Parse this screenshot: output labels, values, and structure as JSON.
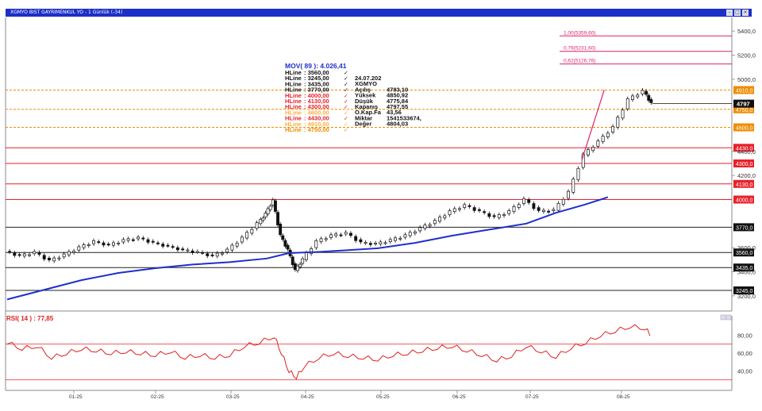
{
  "window": {
    "title": "XGMYO BIST GAYRIMENKUL YO - 1 Günlük (-34)",
    "controls": [
      "min-icon",
      "max-icon",
      "close-icon"
    ]
  },
  "colors": {
    "ma": "#1f2fcc",
    "rsi": "#e02020",
    "hline_red": "#e8202a",
    "hline_black": "#222222",
    "hline_orange": "#f08c00",
    "fib": "#e0206a",
    "tag_red": "#e8202a",
    "tag_orange": "#f08c00",
    "tag_black": "#111111"
  },
  "price_axis": [
    "5400,0",
    "5200,0",
    "5000,0",
    "4400,0",
    "4200,0",
    "3600,0",
    "3400,0",
    "3200,0"
  ],
  "x_axis": [
    "01-25",
    "02-25",
    "03-25",
    "04-25",
    "05-25",
    "06-25",
    "07-25",
    "08-25"
  ],
  "info": {
    "mov_label": "MOV( 89 ): 4.026,41",
    "hlines": [
      {
        "name": "HLine",
        "value": ": 3560,00",
        "color": "black"
      },
      {
        "name": "HLine",
        "value": ": 3245,00",
        "color": "black"
      },
      {
        "name": "HLine",
        "value": ": 3435,00",
        "color": "black"
      },
      {
        "name": "HLine",
        "value": ": 3770,00",
        "color": "black"
      },
      {
        "name": "HLine",
        "value": ": 4000,00",
        "color": "red"
      },
      {
        "name": "HLine",
        "value": ": 4130,00",
        "color": "red"
      },
      {
        "name": "HLine",
        "value": ": 4300,00",
        "color": "red"
      },
      {
        "name": "HLine",
        "value": ": 4600,00",
        "color": "light"
      },
      {
        "name": "HLine",
        "value": ": 4430,00",
        "color": "red"
      },
      {
        "name": "HLine",
        "value": ": 4910,00",
        "color": "light"
      },
      {
        "name": "HLine",
        "value": ": 4750,00",
        "color": "orange"
      }
    ],
    "details": [
      {
        "label": "",
        "value": "24.07.202"
      },
      {
        "label": "",
        "value": "XGMYO"
      },
      {
        "label": "Açılış",
        "value": "4783,10"
      },
      {
        "label": "Yüksek",
        "value": "4850,92"
      },
      {
        "label": "Düşük",
        "value": "4775,84"
      },
      {
        "label": "Kapanış",
        "value": "4797,55"
      },
      {
        "label": "O.Kap.Fa",
        "value": "43,56"
      },
      {
        "label": "Miktar",
        "value": "1541533674,"
      },
      {
        "label": "Değer",
        "value": "4804,03"
      }
    ]
  },
  "fib_labels": [
    "1,00(5359,60)",
    "0,79(5231,60)",
    "0,62(5126,76)"
  ],
  "rsi": {
    "label": "RSI( 14 ) : 77,85",
    "axis": [
      "80,00",
      "60,00",
      "40,00"
    ]
  },
  "chart_data": {
    "type": "candlestick",
    "ylim": [
      3100,
      5500
    ],
    "x": [
      "01-25",
      "02-25",
      "03-25",
      "04-25",
      "05-25",
      "06-25",
      "07-25",
      "08-25"
    ],
    "last_price": "4797",
    "hlines": [
      {
        "value": 5359.6,
        "color": "fib",
        "label": "1,00(5359,60)"
      },
      {
        "value": 5231.6,
        "color": "fib",
        "label": "0,79(5231,60)"
      },
      {
        "value": 5126.76,
        "color": "fib",
        "label": "0,62(5126,76)"
      },
      {
        "value": 4910,
        "color": "orange",
        "label": "4910,0"
      },
      {
        "value": 4750,
        "color": "orange",
        "label": "4750,0"
      },
      {
        "value": 4600,
        "color": "orange",
        "label": "4600,0"
      },
      {
        "value": 4430,
        "color": "red",
        "label": "4430,0"
      },
      {
        "value": 4300,
        "color": "red",
        "label": "4300,0"
      },
      {
        "value": 4130,
        "color": "red",
        "label": "4130,0"
      },
      {
        "value": 4000,
        "color": "red",
        "label": "4000,0"
      },
      {
        "value": 3770,
        "color": "black",
        "label": "3770,0"
      },
      {
        "value": 3560,
        "color": "black",
        "label": "3560,0"
      },
      {
        "value": 3435,
        "color": "black",
        "label": "3435,0"
      },
      {
        "value": 3245,
        "color": "black",
        "label": "3245,0"
      }
    ],
    "trendline": [
      [
        0.775,
        4330
      ],
      [
        0.805,
        4910
      ]
    ],
    "ma": [
      [
        0,
        3170
      ],
      [
        0.05,
        3250
      ],
      [
        0.1,
        3330
      ],
      [
        0.15,
        3390
      ],
      [
        0.2,
        3430
      ],
      [
        0.25,
        3460
      ],
      [
        0.3,
        3480
      ],
      [
        0.35,
        3510
      ],
      [
        0.38,
        3555
      ],
      [
        0.42,
        3565
      ],
      [
        0.46,
        3580
      ],
      [
        0.5,
        3595
      ],
      [
        0.55,
        3640
      ],
      [
        0.6,
        3700
      ],
      [
        0.65,
        3750
      ],
      [
        0.7,
        3800
      ],
      [
        0.74,
        3890
      ],
      [
        0.78,
        3960
      ],
      [
        0.81,
        4020
      ]
    ],
    "close": [
      [
        0,
        3570
      ],
      [
        0.02,
        3530
      ],
      [
        0.04,
        3560
      ],
      [
        0.06,
        3490
      ],
      [
        0.08,
        3540
      ],
      [
        0.1,
        3600
      ],
      [
        0.12,
        3650
      ],
      [
        0.14,
        3620
      ],
      [
        0.16,
        3660
      ],
      [
        0.18,
        3680
      ],
      [
        0.2,
        3640
      ],
      [
        0.22,
        3610
      ],
      [
        0.24,
        3580
      ],
      [
        0.26,
        3560
      ],
      [
        0.28,
        3530
      ],
      [
        0.3,
        3580
      ],
      [
        0.32,
        3680
      ],
      [
        0.34,
        3800
      ],
      [
        0.35,
        3880
      ],
      [
        0.36,
        3990
      ],
      [
        0.37,
        3700
      ],
      [
        0.38,
        3580
      ],
      [
        0.39,
        3410
      ],
      [
        0.4,
        3500
      ],
      [
        0.42,
        3650
      ],
      [
        0.44,
        3700
      ],
      [
        0.46,
        3720
      ],
      [
        0.48,
        3640
      ],
      [
        0.5,
        3630
      ],
      [
        0.52,
        3660
      ],
      [
        0.54,
        3700
      ],
      [
        0.56,
        3760
      ],
      [
        0.58,
        3820
      ],
      [
        0.6,
        3900
      ],
      [
        0.62,
        3950
      ],
      [
        0.64,
        3900
      ],
      [
        0.66,
        3850
      ],
      [
        0.68,
        3900
      ],
      [
        0.7,
        4000
      ],
      [
        0.72,
        3900
      ],
      [
        0.74,
        3910
      ],
      [
        0.76,
        4060
      ],
      [
        0.78,
        4370
      ],
      [
        0.8,
        4480
      ],
      [
        0.82,
        4600
      ],
      [
        0.84,
        4830
      ],
      [
        0.86,
        4900
      ],
      [
        0.87,
        4797
      ]
    ],
    "rsi": {
      "ylim": [
        20,
        100
      ],
      "levels": [
        70,
        30
      ],
      "values": [
        [
          0,
          72
        ],
        [
          0.02,
          65
        ],
        [
          0.04,
          68
        ],
        [
          0.06,
          55
        ],
        [
          0.08,
          60
        ],
        [
          0.1,
          65
        ],
        [
          0.12,
          63
        ],
        [
          0.14,
          60
        ],
        [
          0.16,
          62
        ],
        [
          0.18,
          60
        ],
        [
          0.2,
          58
        ],
        [
          0.22,
          62
        ],
        [
          0.24,
          55
        ],
        [
          0.26,
          58
        ],
        [
          0.28,
          55
        ],
        [
          0.3,
          58
        ],
        [
          0.32,
          68
        ],
        [
          0.34,
          72
        ],
        [
          0.36,
          79
        ],
        [
          0.37,
          60
        ],
        [
          0.38,
          40
        ],
        [
          0.39,
          33
        ],
        [
          0.4,
          45
        ],
        [
          0.42,
          55
        ],
        [
          0.44,
          60
        ],
        [
          0.46,
          57
        ],
        [
          0.48,
          55
        ],
        [
          0.5,
          53
        ],
        [
          0.52,
          58
        ],
        [
          0.54,
          60
        ],
        [
          0.56,
          63
        ],
        [
          0.58,
          66
        ],
        [
          0.6,
          68
        ],
        [
          0.62,
          63
        ],
        [
          0.64,
          58
        ],
        [
          0.66,
          52
        ],
        [
          0.68,
          57
        ],
        [
          0.7,
          68
        ],
        [
          0.72,
          62
        ],
        [
          0.74,
          56
        ],
        [
          0.76,
          66
        ],
        [
          0.78,
          72
        ],
        [
          0.8,
          80
        ],
        [
          0.82,
          85
        ],
        [
          0.84,
          90
        ],
        [
          0.86,
          88
        ],
        [
          0.87,
          78
        ]
      ]
    }
  }
}
